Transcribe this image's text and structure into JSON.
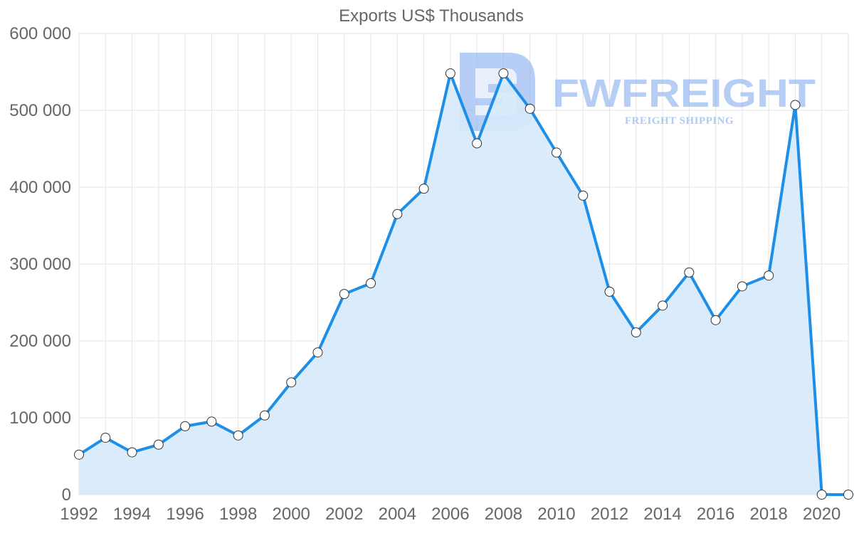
{
  "watermark": {
    "brand": "FWFREIGHT",
    "tagline": "FREIGHT SHIPPING"
  },
  "colors": {
    "line": "#1e8fe8",
    "area": "#d6eafb",
    "point_fill": "#ffffff",
    "point_stroke": "#333333",
    "watermark": "#7aa6ec"
  },
  "chart_data": {
    "type": "area",
    "title": "Exports US$ Thousands",
    "xlabel": "",
    "ylabel": "",
    "ylim": [
      0,
      600000
    ],
    "y_ticks": [
      0,
      100000,
      200000,
      300000,
      400000,
      500000,
      600000
    ],
    "y_tick_labels": [
      "0",
      "100 000",
      "200 000",
      "300 000",
      "400 000",
      "500 000",
      "600 000"
    ],
    "x_tick_labels": [
      "1992",
      "1994",
      "1996",
      "1998",
      "2000",
      "2002",
      "2004",
      "2006",
      "2008",
      "2010",
      "2012",
      "2014",
      "2016",
      "2018",
      "2020"
    ],
    "grid": true,
    "series": [
      {
        "name": "Exports US$ Thousands",
        "x": [
          1992,
          1993,
          1994,
          1995,
          1996,
          1997,
          1998,
          1999,
          2000,
          2001,
          2002,
          2003,
          2004,
          2005,
          2006,
          2007,
          2008,
          2009,
          2010,
          2011,
          2012,
          2013,
          2014,
          2015,
          2016,
          2017,
          2018,
          2019,
          2020,
          2021
        ],
        "values": [
          52000,
          74000,
          55000,
          65000,
          89000,
          95000,
          77000,
          103000,
          146000,
          185000,
          261000,
          275000,
          365000,
          398000,
          548000,
          457000,
          548000,
          502000,
          445000,
          389000,
          264000,
          211000,
          246000,
          289000,
          227000,
          271000,
          285000,
          507000,
          0,
          0
        ]
      }
    ]
  }
}
